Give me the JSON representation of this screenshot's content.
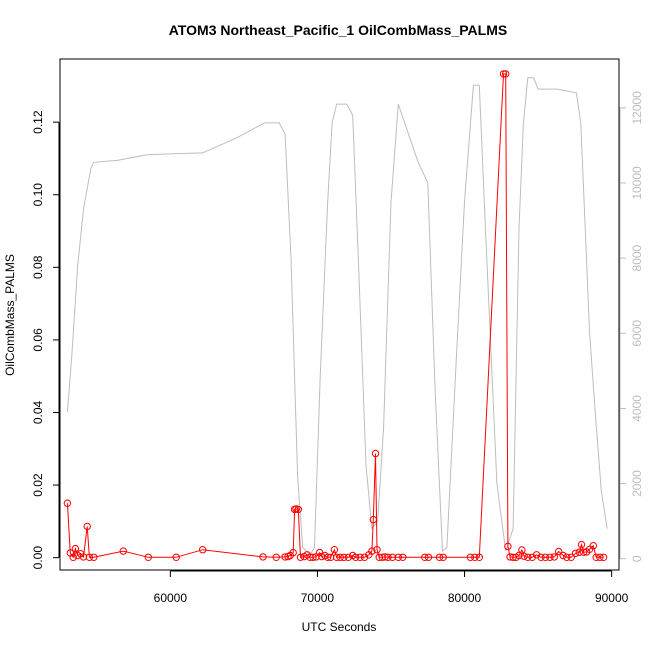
{
  "chart_data": {
    "type": "line",
    "title": "ATOM3 Northeast_Pacific_1 OilCombMass_PALMS",
    "xlabel": "UTC Seconds",
    "ylabel": "OilCombMass_PALMS",
    "xlim": [
      52500,
      90500
    ],
    "ylim": [
      -0.0034,
      0.1374
    ],
    "y2lim": [
      -300,
      13300
    ],
    "xticks": [
      60000,
      70000,
      80000,
      90000
    ],
    "yticks": [
      0.0,
      0.02,
      0.04,
      0.06,
      0.08,
      0.1,
      0.12
    ],
    "y2ticks": [
      0,
      2000,
      4000,
      6000,
      8000,
      10000,
      12000
    ],
    "grid": false,
    "legend": "none",
    "colors": {
      "primary": "#ff0000",
      "secondary": "#bdbdbd"
    },
    "series": [
      {
        "axis": "left",
        "style": "line+open-circles",
        "points": [
          [
            53000,
            0.015
          ],
          [
            53200,
            0.0013
          ],
          [
            53400,
            0.0001
          ],
          [
            53550,
            0.0025
          ],
          [
            53700,
            0.0006
          ],
          [
            53900,
            0.0011
          ],
          [
            54100,
            0.0002
          ],
          [
            54350,
            0.0086
          ],
          [
            54500,
            0.0001
          ],
          [
            54800,
            0.0001
          ],
          [
            56800,
            0.0018
          ],
          [
            58500,
            0.0001
          ],
          [
            60400,
            0.0001
          ],
          [
            62200,
            0.0022
          ],
          [
            66300,
            0.0002
          ],
          [
            67200,
            0.0001
          ],
          [
            67800,
            0.0002
          ],
          [
            68000,
            0.0003
          ],
          [
            68150,
            0.0006
          ],
          [
            68350,
            0.0014
          ],
          [
            68450,
            0.0133
          ],
          [
            68550,
            0.0134
          ],
          [
            68700,
            0.0133
          ],
          [
            68850,
            0.0001
          ],
          [
            69100,
            0.0003
          ],
          [
            69300,
            0.0008
          ],
          [
            69500,
            0.0001
          ],
          [
            69700,
            0.0001
          ],
          [
            69900,
            0.0002
          ],
          [
            70150,
            0.0014
          ],
          [
            70300,
            0.0003
          ],
          [
            70500,
            0.0006
          ],
          [
            70700,
            0.0001
          ],
          [
            70900,
            0.0001
          ],
          [
            71150,
            0.0022
          ],
          [
            71300,
            0.0001
          ],
          [
            71550,
            0.0001
          ],
          [
            71800,
            0.0001
          ],
          [
            72100,
            0.0001
          ],
          [
            72400,
            0.0006
          ],
          [
            72600,
            0.0001
          ],
          [
            72900,
            0.0001
          ],
          [
            73200,
            0.0001
          ],
          [
            73500,
            0.0008
          ],
          [
            73700,
            0.0018
          ],
          [
            73800,
            0.0105
          ],
          [
            73950,
            0.0287
          ],
          [
            74050,
            0.0022
          ],
          [
            74200,
            0.0001
          ],
          [
            74400,
            0.0001
          ],
          [
            74600,
            0.0002
          ],
          [
            74800,
            0.0001
          ],
          [
            75100,
            0.0001
          ],
          [
            75500,
            0.0001
          ],
          [
            75800,
            0.0001
          ],
          [
            77300,
            0.0001
          ],
          [
            77550,
            0.0001
          ],
          [
            78300,
            0.0001
          ],
          [
            78550,
            0.0001
          ],
          [
            80400,
            0.0001
          ],
          [
            80700,
            0.0001
          ],
          [
            81000,
            0.0001
          ],
          [
            82650,
            0.1333
          ],
          [
            82800,
            0.1333
          ],
          [
            82950,
            0.0031
          ],
          [
            83100,
            0.0002
          ],
          [
            83300,
            0.0001
          ],
          [
            83500,
            0.0001
          ],
          [
            83700,
            0.0006
          ],
          [
            83900,
            0.0021
          ],
          [
            84050,
            0.0004
          ],
          [
            84300,
            0.0001
          ],
          [
            84600,
            0.0001
          ],
          [
            84900,
            0.0008
          ],
          [
            85200,
            0.0001
          ],
          [
            85500,
            0.0001
          ],
          [
            85800,
            0.0001
          ],
          [
            86100,
            0.0002
          ],
          [
            86400,
            0.0017
          ],
          [
            86700,
            0.0006
          ],
          [
            86950,
            0.0001
          ],
          [
            87250,
            0.0001
          ],
          [
            87550,
            0.0012
          ],
          [
            87800,
            0.0015
          ],
          [
            87950,
            0.0036
          ],
          [
            88100,
            0.0015
          ],
          [
            88300,
            0.0016
          ],
          [
            88500,
            0.0023
          ],
          [
            88750,
            0.0033
          ],
          [
            88950,
            0.0001
          ],
          [
            89200,
            0.0001
          ],
          [
            89450,
            0.0001
          ]
        ]
      },
      {
        "axis": "right",
        "style": "line",
        "points": [
          [
            53000,
            3900
          ],
          [
            53300,
            5400
          ],
          [
            53700,
            7800
          ],
          [
            54100,
            9300
          ],
          [
            54600,
            10400
          ],
          [
            54800,
            10550
          ],
          [
            56400,
            10600
          ],
          [
            58400,
            10750
          ],
          [
            60200,
            10780
          ],
          [
            62200,
            10800
          ],
          [
            64500,
            11200
          ],
          [
            66400,
            11600
          ],
          [
            67400,
            11600
          ],
          [
            67800,
            11300
          ],
          [
            68200,
            8000
          ],
          [
            68650,
            2200
          ],
          [
            69000,
            300
          ],
          [
            69500,
            100
          ],
          [
            69800,
            300
          ],
          [
            70200,
            5000
          ],
          [
            70700,
            9500
          ],
          [
            71000,
            11600
          ],
          [
            71300,
            12100
          ],
          [
            72000,
            12100
          ],
          [
            72400,
            11800
          ],
          [
            72800,
            7800
          ],
          [
            73300,
            2500
          ],
          [
            73700,
            800
          ],
          [
            74100,
            1000
          ],
          [
            74500,
            3500
          ],
          [
            75000,
            9500
          ],
          [
            75500,
            12100
          ],
          [
            76800,
            10600
          ],
          [
            77500,
            10000
          ],
          [
            78000,
            4500
          ],
          [
            78500,
            200
          ],
          [
            78800,
            300
          ],
          [
            79400,
            5000
          ],
          [
            80000,
            9500
          ],
          [
            80600,
            12600
          ],
          [
            81000,
            12600
          ],
          [
            81400,
            9000
          ],
          [
            82200,
            2000
          ],
          [
            82800,
            200
          ],
          [
            83300,
            800
          ],
          [
            83700,
            8800
          ],
          [
            84000,
            11600
          ],
          [
            84300,
            12800
          ],
          [
            84700,
            12800
          ],
          [
            85000,
            12500
          ],
          [
            86300,
            12500
          ],
          [
            87600,
            12400
          ],
          [
            87900,
            11600
          ],
          [
            88500,
            6000
          ],
          [
            88900,
            3800
          ],
          [
            89300,
            1800
          ],
          [
            89700,
            800
          ]
        ]
      }
    ]
  }
}
